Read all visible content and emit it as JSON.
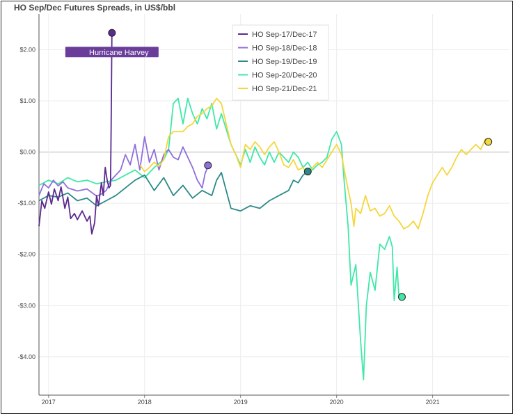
{
  "chart_data": {
    "type": "line",
    "title": "HO Sep/Dec Futures Spreads, in US$/bbl",
    "xlabel": "",
    "ylabel": "",
    "xlim": [
      2016.9,
      2021.8
    ],
    "ylim": [
      -4.75,
      2.7
    ],
    "x_ticks": [
      2017,
      2018,
      2019,
      2020,
      2021
    ],
    "x_tick_labels": [
      "2017",
      "2018",
      "2019",
      "2020",
      "2021"
    ],
    "y_ticks": [
      2,
      1,
      0,
      -1,
      -2,
      -3,
      -4
    ],
    "y_tick_labels": [
      "$2.00",
      "$1.00",
      "$0.00",
      "-$1.00",
      "-$2.00",
      "-$3.00",
      "-$4.00"
    ],
    "grid": true,
    "legend_position": "top-center",
    "series": [
      {
        "name": "HO Sep-17/Dec-17",
        "color": "#5b2a8e",
        "points": [
          [
            2016.9,
            -1.45
          ],
          [
            2016.93,
            -0.95
          ],
          [
            2016.96,
            -1.1
          ],
          [
            2017.0,
            -0.78
          ],
          [
            2017.03,
            -1.02
          ],
          [
            2017.06,
            -0.72
          ],
          [
            2017.1,
            -0.95
          ],
          [
            2017.13,
            -0.68
          ],
          [
            2017.17,
            -1.1
          ],
          [
            2017.2,
            -0.88
          ],
          [
            2017.23,
            -1.3
          ],
          [
            2017.27,
            -1.2
          ],
          [
            2017.3,
            -1.32
          ],
          [
            2017.35,
            -1.15
          ],
          [
            2017.4,
            -1.35
          ],
          [
            2017.43,
            -1.25
          ],
          [
            2017.45,
            -1.6
          ],
          [
            2017.48,
            -1.38
          ],
          [
            2017.5,
            -0.85
          ],
          [
            2017.52,
            -1.05
          ],
          [
            2017.55,
            -0.6
          ],
          [
            2017.57,
            -0.85
          ],
          [
            2017.59,
            -0.3
          ],
          [
            2017.61,
            -0.55
          ],
          [
            2017.63,
            -0.7
          ],
          [
            2017.645,
            -0.65
          ],
          [
            2017.652,
            0.5
          ],
          [
            2017.66,
            2.33
          ]
        ],
        "end_marker": [
          2017.66,
          2.33
        ]
      },
      {
        "name": "HO Sep-18/Dec-18",
        "color": "#8e6fdc",
        "points": [
          [
            2016.9,
            -0.85
          ],
          [
            2016.95,
            -0.62
          ],
          [
            2017.0,
            -0.7
          ],
          [
            2017.05,
            -0.55
          ],
          [
            2017.1,
            -0.66
          ],
          [
            2017.15,
            -0.58
          ],
          [
            2017.2,
            -0.7
          ],
          [
            2017.3,
            -0.76
          ],
          [
            2017.4,
            -0.72
          ],
          [
            2017.5,
            -0.86
          ],
          [
            2017.55,
            -0.82
          ],
          [
            2017.6,
            -0.75
          ],
          [
            2017.65,
            -0.55
          ],
          [
            2017.7,
            -0.45
          ],
          [
            2017.75,
            -0.35
          ],
          [
            2017.8,
            -0.05
          ],
          [
            2017.85,
            -0.25
          ],
          [
            2017.9,
            0.15
          ],
          [
            2017.95,
            -0.35
          ],
          [
            2018.0,
            0.3
          ],
          [
            2018.05,
            -0.2
          ],
          [
            2018.1,
            0.05
          ],
          [
            2018.15,
            -0.35
          ],
          [
            2018.2,
            -0.05
          ],
          [
            2018.25,
            0.05
          ],
          [
            2018.3,
            -0.1
          ],
          [
            2018.35,
            -0.15
          ],
          [
            2018.4,
            0.1
          ],
          [
            2018.45,
            -0.1
          ],
          [
            2018.5,
            -0.3
          ],
          [
            2018.55,
            -0.55
          ],
          [
            2018.6,
            -0.7
          ],
          [
            2018.63,
            -0.42
          ],
          [
            2018.66,
            -0.28
          ]
        ],
        "end_marker": [
          2018.66,
          -0.26
        ]
      },
      {
        "name": "HO Sep-19/Dec-19",
        "color": "#2a8a88",
        "points": [
          [
            2016.9,
            -0.95
          ],
          [
            2017.0,
            -0.85
          ],
          [
            2017.1,
            -0.88
          ],
          [
            2017.2,
            -0.8
          ],
          [
            2017.3,
            -0.95
          ],
          [
            2017.4,
            -0.9
          ],
          [
            2017.5,
            -1.05
          ],
          [
            2017.6,
            -0.95
          ],
          [
            2017.7,
            -0.85
          ],
          [
            2017.8,
            -0.7
          ],
          [
            2017.9,
            -0.55
          ],
          [
            2018.0,
            -0.45
          ],
          [
            2018.1,
            -0.75
          ],
          [
            2018.2,
            -0.5
          ],
          [
            2018.3,
            -0.85
          ],
          [
            2018.4,
            -0.65
          ],
          [
            2018.5,
            -0.9
          ],
          [
            2018.6,
            -0.75
          ],
          [
            2018.7,
            -0.85
          ],
          [
            2018.75,
            -0.55
          ],
          [
            2018.8,
            -0.4
          ],
          [
            2018.85,
            -0.75
          ],
          [
            2018.9,
            -1.1
          ],
          [
            2019.0,
            -1.15
          ],
          [
            2019.1,
            -1.05
          ],
          [
            2019.2,
            -1.1
          ],
          [
            2019.3,
            -0.95
          ],
          [
            2019.4,
            -0.85
          ],
          [
            2019.5,
            -0.75
          ],
          [
            2019.55,
            -0.55
          ],
          [
            2019.6,
            -0.6
          ],
          [
            2019.65,
            -0.45
          ],
          [
            2019.7,
            -0.38
          ]
        ],
        "end_marker": [
          2019.7,
          -0.38
        ]
      },
      {
        "name": "HO Sep-20/Dec-20",
        "color": "#3fe8a8",
        "points": [
          [
            2016.9,
            -0.65
          ],
          [
            2017.0,
            -0.55
          ],
          [
            2017.1,
            -0.62
          ],
          [
            2017.2,
            -0.5
          ],
          [
            2017.3,
            -0.58
          ],
          [
            2017.4,
            -0.55
          ],
          [
            2017.5,
            -0.62
          ],
          [
            2017.6,
            -0.58
          ],
          [
            2017.7,
            -0.55
          ],
          [
            2017.8,
            -0.45
          ],
          [
            2017.9,
            -0.35
          ],
          [
            2018.0,
            -0.5
          ],
          [
            2018.1,
            -0.3
          ],
          [
            2018.2,
            -0.15
          ],
          [
            2018.25,
            0.05
          ],
          [
            2018.3,
            0.95
          ],
          [
            2018.35,
            1.05
          ],
          [
            2018.4,
            0.55
          ],
          [
            2018.45,
            1.05
          ],
          [
            2018.5,
            0.75
          ],
          [
            2018.55,
            0.55
          ],
          [
            2018.6,
            0.85
          ],
          [
            2018.65,
            0.65
          ],
          [
            2018.7,
            0.95
          ],
          [
            2018.75,
            0.45
          ],
          [
            2018.8,
            0.75
          ],
          [
            2018.85,
            0.45
          ],
          [
            2018.9,
            0.15
          ],
          [
            2018.95,
            -0.05
          ],
          [
            2019.0,
            -0.25
          ],
          [
            2019.05,
            0.05
          ],
          [
            2019.1,
            -0.2
          ],
          [
            2019.15,
            0.1
          ],
          [
            2019.2,
            -0.1
          ],
          [
            2019.25,
            -0.25
          ],
          [
            2019.3,
            0.0
          ],
          [
            2019.35,
            -0.2
          ],
          [
            2019.4,
            0.0
          ],
          [
            2019.45,
            -0.1
          ],
          [
            2019.5,
            -0.2
          ],
          [
            2019.55,
            0.0
          ],
          [
            2019.6,
            -0.1
          ],
          [
            2019.65,
            -0.3
          ],
          [
            2019.7,
            -0.2
          ],
          [
            2019.75,
            -0.35
          ],
          [
            2019.8,
            -0.25
          ],
          [
            2019.85,
            -0.2
          ],
          [
            2019.9,
            -0.1
          ],
          [
            2019.95,
            0.25
          ],
          [
            2020.0,
            0.4
          ],
          [
            2020.05,
            0.15
          ],
          [
            2020.08,
            -0.6
          ],
          [
            2020.12,
            -1.45
          ],
          [
            2020.15,
            -2.6
          ],
          [
            2020.2,
            -2.2
          ],
          [
            2020.25,
            -3.7
          ],
          [
            2020.28,
            -4.45
          ],
          [
            2020.31,
            -3.0
          ],
          [
            2020.35,
            -2.35
          ],
          [
            2020.4,
            -2.7
          ],
          [
            2020.45,
            -1.8
          ],
          [
            2020.5,
            -1.9
          ],
          [
            2020.55,
            -1.65
          ],
          [
            2020.58,
            -1.85
          ],
          [
            2020.6,
            -2.9
          ],
          [
            2020.63,
            -2.25
          ],
          [
            2020.65,
            -2.85
          ],
          [
            2020.68,
            -2.82
          ]
        ],
        "end_marker": [
          2020.68,
          -2.83
        ]
      },
      {
        "name": "HO Sep-21/Dec-21",
        "color": "#f5d63c",
        "points": [
          [
            2017.95,
            -0.25
          ],
          [
            2018.0,
            -0.38
          ],
          [
            2018.05,
            -0.3
          ],
          [
            2018.1,
            -0.2
          ],
          [
            2018.15,
            -0.28
          ],
          [
            2018.2,
            -0.15
          ],
          [
            2018.25,
            0.3
          ],
          [
            2018.3,
            0.4
          ],
          [
            2018.4,
            0.4
          ],
          [
            2018.45,
            0.5
          ],
          [
            2018.5,
            0.55
          ],
          [
            2018.55,
            0.7
          ],
          [
            2018.6,
            0.75
          ],
          [
            2018.65,
            0.85
          ],
          [
            2018.7,
            0.9
          ],
          [
            2018.75,
            1.05
          ],
          [
            2018.8,
            0.95
          ],
          [
            2018.85,
            0.55
          ],
          [
            2018.9,
            0.15
          ],
          [
            2018.95,
            -0.05
          ],
          [
            2019.0,
            -0.3
          ],
          [
            2019.05,
            0.15
          ],
          [
            2019.1,
            0.05
          ],
          [
            2019.15,
            0.2
          ],
          [
            2019.2,
            0.1
          ],
          [
            2019.25,
            -0.05
          ],
          [
            2019.3,
            0.1
          ],
          [
            2019.35,
            0.2
          ],
          [
            2019.4,
            0.0
          ],
          [
            2019.45,
            -0.25
          ],
          [
            2019.5,
            -0.3
          ],
          [
            2019.55,
            -0.15
          ],
          [
            2019.6,
            -0.35
          ],
          [
            2019.65,
            -0.3
          ],
          [
            2019.7,
            -0.45
          ],
          [
            2019.75,
            -0.3
          ],
          [
            2019.8,
            -0.2
          ],
          [
            2019.85,
            -0.3
          ],
          [
            2019.9,
            -0.15
          ],
          [
            2019.95,
            0.0
          ],
          [
            2020.0,
            0.15
          ],
          [
            2020.05,
            -0.05
          ],
          [
            2020.1,
            -0.55
          ],
          [
            2020.15,
            -1.0
          ],
          [
            2020.18,
            -1.45
          ],
          [
            2020.2,
            -1.1
          ],
          [
            2020.25,
            -1.2
          ],
          [
            2020.3,
            -0.85
          ],
          [
            2020.35,
            -1.15
          ],
          [
            2020.4,
            -1.1
          ],
          [
            2020.45,
            -1.25
          ],
          [
            2020.5,
            -1.2
          ],
          [
            2020.55,
            -1.05
          ],
          [
            2020.6,
            -1.25
          ],
          [
            2020.65,
            -1.35
          ],
          [
            2020.7,
            -1.5
          ],
          [
            2020.75,
            -1.45
          ],
          [
            2020.8,
            -1.35
          ],
          [
            2020.85,
            -1.5
          ],
          [
            2020.9,
            -1.2
          ],
          [
            2020.95,
            -0.85
          ],
          [
            2021.0,
            -0.6
          ],
          [
            2021.05,
            -0.45
          ],
          [
            2021.1,
            -0.3
          ],
          [
            2021.15,
            -0.45
          ],
          [
            2021.2,
            -0.3
          ],
          [
            2021.25,
            -0.1
          ],
          [
            2021.3,
            0.05
          ],
          [
            2021.35,
            -0.05
          ],
          [
            2021.4,
            0.05
          ],
          [
            2021.45,
            0.15
          ],
          [
            2021.5,
            0.05
          ],
          [
            2021.55,
            0.25
          ],
          [
            2021.58,
            0.2
          ]
        ],
        "end_marker": [
          2021.58,
          0.2
        ]
      }
    ],
    "annotations": [
      {
        "text": "Hurricane Harvey",
        "x": 2017.66,
        "y": 2.05,
        "color": "#6a3d9a"
      }
    ]
  }
}
